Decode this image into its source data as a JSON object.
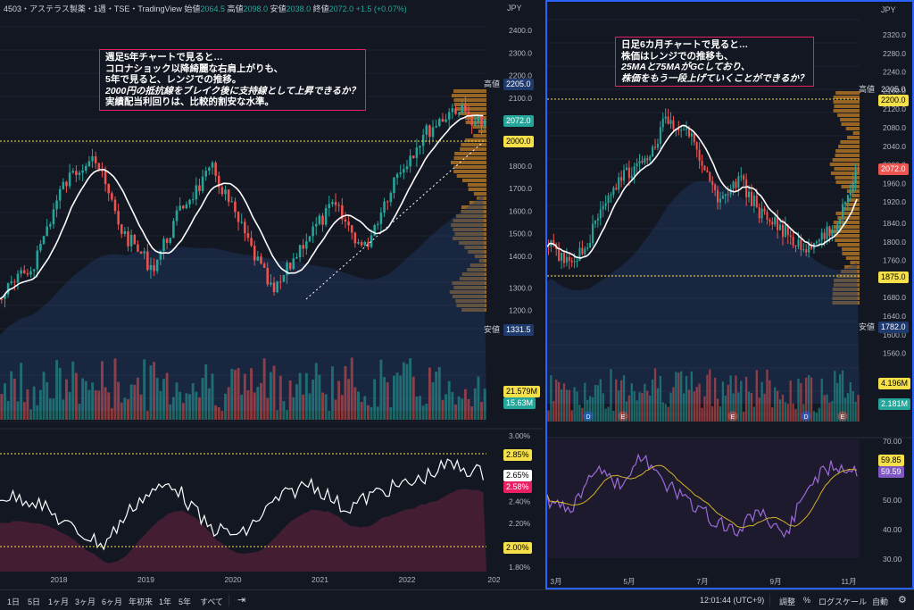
{
  "header": {
    "symbol": "4503・アステラス製薬・1週・TSE・TradingView",
    "open_label": "始値",
    "open": "2064.5",
    "high_label": "高値",
    "high": "2098.0",
    "low_label": "安値",
    "low": "2038.0",
    "close_label": "終値",
    "close": "2072.0",
    "change": "+1.5 (+0.07%)"
  },
  "currency": "JPY",
  "left": {
    "note_lines": [
      "週足5年チャートで見ると…",
      "コロナショック以降綺麗な右肩上がりも、",
      "5年で見ると、レンジでの推移。",
      "2000円の抵抗線をブレイク後に支持線として上昇できるか？",
      "実績配当利回りは、比較的割安な水準。"
    ],
    "price_ticks": [
      "2400.0",
      "2300.0",
      "2200.0",
      "2100.0",
      "2000.0",
      "1900.0",
      "1800.0",
      "1700.0",
      "1600.0",
      "1500.0",
      "1400.0",
      "1300.0",
      "1200.0",
      "1100.0"
    ],
    "tags": {
      "high_label": "高値",
      "high": "2205.0",
      "last": "2072.0",
      "level": "2000.0",
      "low_label": "安値",
      "low": "1331.5",
      "vol1": "21.579M",
      "vol2": "15.63M"
    },
    "yield_ticks": [
      "3.00%",
      "2.80%",
      "2.60%",
      "2.40%",
      "2.20%",
      "2.00%",
      "1.80%"
    ],
    "yield_tags": {
      "top": "2.85%",
      "cur1": "2.65%",
      "cur2": "2.58%",
      "bottom": "2.00%"
    },
    "years": [
      "2018",
      "2019",
      "2020",
      "2021",
      "2022",
      "202"
    ]
  },
  "right": {
    "note_lines": [
      "日足6カ月チャートで見ると…",
      "株価はレンジでの推移も、",
      "25MAと75MAがGCしており、",
      "株価をもう一段上げていくことができるか？"
    ],
    "price_ticks": [
      "2320.0",
      "2280.0",
      "2240.0",
      "2160.0",
      "2120.0",
      "2080.0",
      "2040.0",
      "2000.0",
      "1960.0",
      "1920.0",
      "1840.0",
      "1800.0",
      "1760.0",
      "1720.0",
      "1680.0",
      "1640.0",
      "1600.0",
      "1560.0"
    ],
    "tags": {
      "high_label": "高値",
      "high": "2205.0",
      "level_high": "2200.0",
      "last": "2072.0",
      "level_low": "1875.0",
      "low_label": "安値",
      "low": "1782.0",
      "vol1": "4.196M",
      "vol2": "2.181M"
    },
    "event_markers": [
      "D",
      "E",
      "E",
      "D",
      "E"
    ],
    "rsi_ticks": [
      "70.00",
      "60.00",
      "50.00",
      "40.00",
      "30.00"
    ],
    "rsi_tags": {
      "v1": "59.85",
      "v2": "59.59"
    },
    "months": [
      "3月",
      "5月",
      "7月",
      "9月",
      "11月"
    ]
  },
  "bottom": {
    "ranges": [
      "1日",
      "5日",
      "1ヶ月",
      "3ヶ月",
      "6ヶ月",
      "年初来",
      "1年",
      "5年",
      "すべて"
    ],
    "time": "12:01:44 (UTC+9)",
    "adjust": "調整",
    "percent": "%",
    "log": "ログスケール",
    "auto": "自動"
  },
  "colors": {
    "up": "#26a69a",
    "down": "#ef5350",
    "bg": "#131722",
    "ma": "#ffffff",
    "accent": "#2962ff",
    "yellow": "#f5e04a",
    "profile": "#c47f24",
    "rsi": "#9c6bd8",
    "rsi_ma": "#d4b12a"
  }
}
